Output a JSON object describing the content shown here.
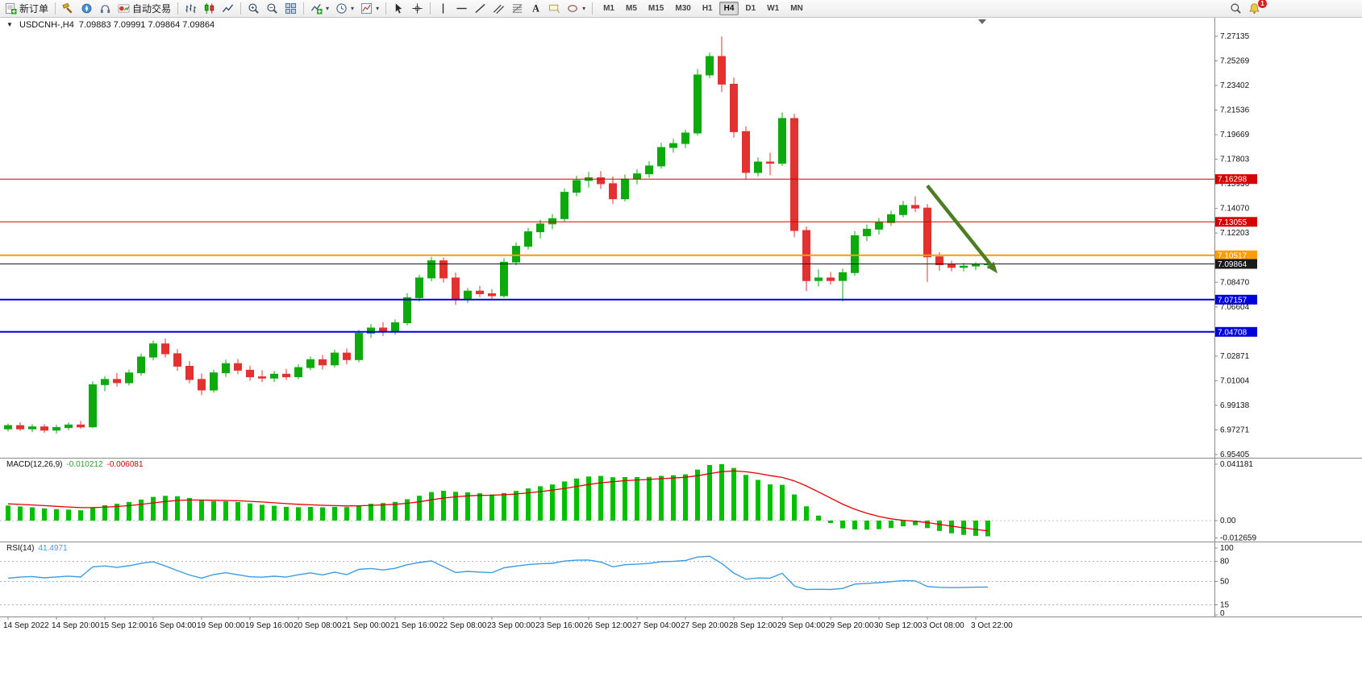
{
  "toolbar": {
    "groups": [
      {
        "items": [
          {
            "name": "new-order",
            "icon": "new-order",
            "label": "新订单"
          }
        ]
      },
      {
        "items": [
          {
            "name": "market-watch",
            "icon": "market-watch"
          },
          {
            "name": "navigator",
            "icon": "navigator"
          },
          {
            "name": "terminal",
            "icon": "terminal"
          },
          {
            "name": "autotrading",
            "icon": "autotrading",
            "label": "自动交易"
          }
        ]
      },
      {
        "items": [
          {
            "name": "bar-chart-mode",
            "icon": "bar-chart"
          },
          {
            "name": "candlestick-mode",
            "icon": "candle-chart"
          },
          {
            "name": "line-chart-mode",
            "icon": "line-chart"
          }
        ]
      },
      {
        "items": [
          {
            "name": "zoom-in",
            "icon": "zoom-in"
          },
          {
            "name": "zoom-out",
            "icon": "zoom-out"
          },
          {
            "name": "tile-windows",
            "icon": "tile-windows"
          }
        ]
      },
      {
        "items": [
          {
            "name": "indicators",
            "icon": "indicators",
            "dropdown": true
          },
          {
            "name": "periods",
            "icon": "periods",
            "dropdown": true
          },
          {
            "name": "templates",
            "icon": "templates",
            "dropdown": true
          }
        ]
      },
      {
        "items": [
          {
            "name": "cursor",
            "icon": "cursor"
          },
          {
            "name": "crosshair",
            "icon": "crosshair"
          }
        ]
      },
      {
        "items": [
          {
            "name": "vertical-line-tool",
            "icon": "vertical-line"
          },
          {
            "name": "horizontal-line-tool",
            "icon": "horizontal-line"
          },
          {
            "name": "trendline-tool",
            "icon": "trendline"
          },
          {
            "name": "channel-tool",
            "icon": "channel"
          },
          {
            "name": "fibonacci-tool",
            "icon": "fibonacci"
          },
          {
            "name": "text-tool",
            "icon": "text"
          },
          {
            "name": "label-tool",
            "icon": "label"
          },
          {
            "name": "shapes-tool",
            "icon": "shapes",
            "dropdown": true
          }
        ]
      }
    ],
    "timeframes": {
      "options": [
        "M1",
        "M5",
        "M15",
        "M30",
        "H1",
        "H4",
        "D1",
        "W1",
        "MN"
      ],
      "active": "H4"
    },
    "right": {
      "alert_badge": "1"
    }
  },
  "chart": {
    "title": "USDCNH-,H4",
    "ohlc": "7.09883 7.09991 7.09864 7.09864",
    "collapse_arrow": "▼",
    "macd": {
      "name": "MACD(12,26,9)",
      "main_value": "-0.010212",
      "signal_value": "-0.006081"
    },
    "rsi": {
      "name": "RSI(14)",
      "value": "41.4971"
    }
  },
  "chart_data": {
    "type": "candlestick",
    "symbol": "USDCNH-",
    "timeframe": "H4",
    "ohlc_readout": {
      "open": 7.09883,
      "high": 7.09991,
      "low": 7.09864,
      "close": 7.09864
    },
    "y_axis_labels": [
      7.27135,
      7.25269,
      7.23402,
      7.21536,
      7.19669,
      7.17803,
      7.15936,
      7.1407,
      7.12203,
      7.10337,
      7.0847,
      7.06604,
      7.04737,
      7.02871,
      7.01004,
      6.99138,
      6.97271,
      6.95405
    ],
    "x_labels": [
      "14 Sep 2022",
      "14 Sep 20:00",
      "15 Sep 12:00",
      "16 Sep 04:00",
      "19 Sep 00:00",
      "19 Sep 16:00",
      "20 Sep 08:00",
      "21 Sep 00:00",
      "21 Sep 16:00",
      "22 Sep 08:00",
      "23 Sep 00:00",
      "23 Sep 16:00",
      "26 Sep 12:00",
      "27 Sep 04:00",
      "27 Sep 20:00",
      "28 Sep 12:00",
      "29 Sep 04:00",
      "29 Sep 20:00",
      "30 Sep 12:00",
      "3 Oct 08:00",
      "3 Oct 22:00"
    ],
    "x_label_step": 4,
    "candles": [
      [
        6.9735,
        6.9775,
        6.9715,
        6.976
      ],
      [
        6.976,
        6.9785,
        6.972,
        6.9735
      ],
      [
        6.9735,
        6.977,
        6.971,
        6.975
      ],
      [
        6.975,
        6.977,
        6.9705,
        6.9725
      ],
      [
        6.9725,
        6.9765,
        6.97,
        6.9745
      ],
      [
        6.9745,
        6.9785,
        6.9725,
        6.9765
      ],
      [
        6.9765,
        6.9795,
        6.9735,
        6.975
      ],
      [
        6.975,
        7.0095,
        6.974,
        7.007
      ],
      [
        7.007,
        7.0135,
        7.002,
        7.011
      ],
      [
        7.011,
        7.016,
        7.0055,
        7.0085
      ],
      [
        7.0085,
        7.0185,
        7.0065,
        7.016
      ],
      [
        7.016,
        7.0305,
        7.014,
        7.028
      ],
      [
        7.028,
        7.0405,
        7.0255,
        7.038
      ],
      [
        7.038,
        7.042,
        7.0275,
        7.0305
      ],
      [
        7.0305,
        7.034,
        7.0175,
        7.021
      ],
      [
        7.021,
        7.025,
        7.008,
        7.011
      ],
      [
        7.011,
        7.0155,
        6.999,
        7.003
      ],
      [
        7.003,
        7.0185,
        7.001,
        7.016
      ],
      [
        7.016,
        7.026,
        7.013,
        7.023
      ],
      [
        7.023,
        7.0265,
        7.015,
        7.018
      ],
      [
        7.018,
        7.0215,
        7.01,
        7.013
      ],
      [
        7.013,
        7.018,
        7.009,
        7.012
      ],
      [
        7.012,
        7.0175,
        7.009,
        7.015
      ],
      [
        7.015,
        7.019,
        7.0105,
        7.013
      ],
      [
        7.013,
        7.0225,
        7.011,
        7.02
      ],
      [
        7.02,
        7.0285,
        7.018,
        7.026
      ],
      [
        7.026,
        7.0295,
        7.0185,
        7.022
      ],
      [
        7.022,
        7.0335,
        7.02,
        7.031
      ],
      [
        7.031,
        7.0345,
        7.0225,
        7.026
      ],
      [
        7.026,
        7.0485,
        7.024,
        7.046
      ],
      [
        7.046,
        7.053,
        7.0425,
        7.05
      ],
      [
        7.05,
        7.0545,
        7.044,
        7.047
      ],
      [
        7.047,
        7.0565,
        7.045,
        7.054
      ],
      [
        7.054,
        7.0765,
        7.052,
        7.073
      ],
      [
        7.073,
        7.0905,
        7.07,
        7.088
      ],
      [
        7.088,
        7.104,
        7.0855,
        7.101
      ],
      [
        7.101,
        7.1035,
        7.0845,
        7.088
      ],
      [
        7.088,
        7.092,
        7.0675,
        7.072
      ],
      [
        7.072,
        7.0805,
        7.069,
        7.078
      ],
      [
        7.078,
        7.082,
        7.0735,
        7.076
      ],
      [
        7.076,
        7.0795,
        7.072,
        7.0745
      ],
      [
        7.0745,
        7.103,
        7.073,
        7.1
      ],
      [
        7.1,
        7.115,
        7.0975,
        7.112
      ],
      [
        7.112,
        7.126,
        7.1095,
        7.123
      ],
      [
        7.123,
        7.132,
        7.118,
        7.129
      ],
      [
        7.129,
        7.1365,
        7.125,
        7.133
      ],
      [
        7.133,
        7.156,
        7.131,
        7.153
      ],
      [
        7.153,
        7.1655,
        7.15,
        7.162
      ],
      [
        7.162,
        7.1685,
        7.1565,
        7.164
      ],
      [
        7.164,
        7.169,
        7.1555,
        7.1595
      ],
      [
        7.1595,
        7.165,
        7.144,
        7.148
      ],
      [
        7.148,
        7.1665,
        7.146,
        7.163
      ],
      [
        7.163,
        7.1705,
        7.159,
        7.167
      ],
      [
        7.167,
        7.1765,
        7.164,
        7.173
      ],
      [
        7.173,
        7.1905,
        7.171,
        7.187
      ],
      [
        7.187,
        7.1935,
        7.183,
        7.19
      ],
      [
        7.19,
        7.2005,
        7.1865,
        7.198
      ],
      [
        7.198,
        7.2465,
        7.196,
        7.242
      ],
      [
        7.242,
        7.259,
        7.2395,
        7.256
      ],
      [
        7.256,
        7.2712,
        7.229,
        7.235
      ],
      [
        7.235,
        7.24,
        7.1945,
        7.199
      ],
      [
        7.199,
        7.203,
        7.1625,
        7.168
      ],
      [
        7.168,
        7.1795,
        7.165,
        7.176
      ],
      [
        7.176,
        7.183,
        7.166,
        7.175
      ],
      [
        7.175,
        7.2135,
        7.173,
        7.209
      ],
      [
        7.209,
        7.2125,
        7.119,
        7.124
      ],
      [
        7.124,
        7.127,
        7.078,
        7.086
      ],
      [
        7.086,
        7.0945,
        7.0815,
        7.088
      ],
      [
        7.088,
        7.0925,
        7.083,
        7.086
      ],
      [
        7.086,
        7.095,
        7.07,
        7.092
      ],
      [
        7.092,
        7.1235,
        7.0895,
        7.12
      ],
      [
        7.12,
        7.1285,
        7.116,
        7.125
      ],
      [
        7.125,
        7.1335,
        7.121,
        7.13
      ],
      [
        7.13,
        7.139,
        7.1275,
        7.136
      ],
      [
        7.136,
        7.1465,
        7.134,
        7.143
      ],
      [
        7.143,
        7.15,
        7.138,
        7.141
      ],
      [
        7.141,
        7.144,
        7.085,
        7.104
      ],
      [
        7.104,
        7.1075,
        7.0935,
        7.098
      ],
      [
        7.098,
        7.101,
        7.093,
        7.096
      ],
      [
        7.096,
        7.0995,
        7.093,
        7.097
      ],
      [
        7.097,
        7.1,
        7.094,
        7.098
      ],
      [
        7.098,
        7.0999,
        7.095,
        7.0986
      ]
    ],
    "price_lines": [
      {
        "name": "horizontal-line-1",
        "price": 7.16298,
        "label": "7.16298",
        "color": "#d40000",
        "width": 1
      },
      {
        "name": "horizontal-line-2",
        "price": 7.13055,
        "label": "7.13055",
        "color": "#d40000",
        "width": 1
      },
      {
        "name": "horizontal-line-3",
        "price": 7.10517,
        "label": "7.10517",
        "color": "#ff9c00",
        "width": 2
      },
      {
        "name": "current-price-line",
        "price": 7.09864,
        "label": "7.09864",
        "color": "#1a1a1a",
        "width": 1
      },
      {
        "name": "horizontal-line-4",
        "price": 7.07157,
        "label": "7.07157",
        "color": "#0000d8",
        "width": 2
      },
      {
        "name": "horizontal-line-5",
        "price": 7.04708,
        "label": "7.04708",
        "color": "#0000d8",
        "width": 2
      }
    ],
    "arrow": {
      "from": {
        "index": 76,
        "price": 7.158
      },
      "to": {
        "index": 81.8,
        "price": 7.0915
      },
      "color": "#4e7d21"
    },
    "macd_axis": [
      {
        "v": 0.041181,
        "t": "0.041181"
      },
      {
        "v": 0,
        "t": "0.00"
      },
      {
        "v": -0.012659,
        "t": "-0.012659"
      }
    ],
    "rsi_axis": [
      {
        "v": 100,
        "t": "100"
      },
      {
        "v": 80,
        "t": "80"
      },
      {
        "v": 50,
        "t": "50"
      },
      {
        "v": 15,
        "t": "15"
      },
      {
        "v": 0,
        "t": "0"
      }
    ],
    "rsi_levels": [
      80,
      50,
      15
    ],
    "indicators": [
      {
        "name": "MACD",
        "params": "12,26,9",
        "values": [
          -0.010212,
          -0.006081
        ]
      },
      {
        "name": "RSI",
        "params": "14",
        "value": 41.4971
      }
    ],
    "colors": {
      "up": "#0caa0c",
      "down": "#e33030",
      "macd_histogram": "#00c000",
      "macd_signal": "#e00000",
      "rsi_line": "#3d9ce0",
      "axis_text": "#111111"
    }
  }
}
